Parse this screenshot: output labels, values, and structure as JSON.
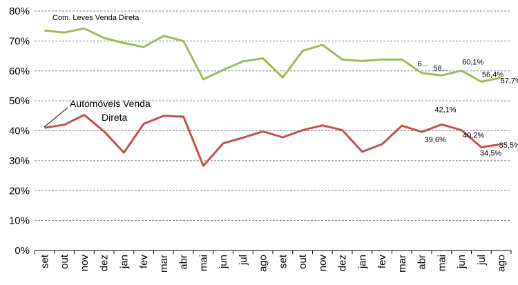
{
  "chart_data": {
    "type": "line",
    "categories": [
      "set",
      "out",
      "nov",
      "dez",
      "jan",
      "fev",
      "mar",
      "abr",
      "mai",
      "jun",
      "jul",
      "ago",
      "set",
      "out",
      "nov",
      "dez",
      "jan",
      "fev",
      "mar",
      "abr",
      "mai",
      "jun",
      "jul",
      "ago"
    ],
    "ylim": [
      0,
      80
    ],
    "yticks": [
      0,
      10,
      20,
      30,
      40,
      50,
      60,
      70,
      80
    ],
    "ytick_labels": [
      "0%",
      "10%",
      "20%",
      "30%",
      "40%",
      "50%",
      "60%",
      "70%",
      "80%"
    ],
    "grid": true,
    "series": [
      {
        "name": "Com. Leves Venda Direta",
        "color": "#9bbb59",
        "values": [
          73.5,
          72.8,
          74.2,
          71.0,
          69.3,
          68.0,
          71.7,
          70.0,
          57.2,
          60.3,
          63.2,
          64.2,
          57.8,
          66.7,
          68.7,
          63.8,
          63.3,
          63.8,
          63.8,
          59.3,
          58.5,
          60.1,
          56.4,
          57.7
        ],
        "data_labels": [
          {
            "index": 19,
            "text": "6..."
          },
          {
            "index": 20,
            "text": "58..."
          },
          {
            "index": 21,
            "text": "60,1%"
          },
          {
            "index": 22,
            "text": "56,4%"
          },
          {
            "index": 23,
            "text": "57,7%"
          }
        ]
      },
      {
        "name": "Automóveis Venda Direta",
        "name_lines": [
          "Automóveis Venda",
          "Direta"
        ],
        "color": "#c0504d",
        "values": [
          41.0,
          42.0,
          45.3,
          39.8,
          32.7,
          42.3,
          45.0,
          44.7,
          28.3,
          35.8,
          37.7,
          39.8,
          37.8,
          40.2,
          41.8,
          40.2,
          33.0,
          35.5,
          41.7,
          39.6,
          42.1,
          40.2,
          34.5,
          35.5
        ],
        "data_labels": [
          {
            "index": 19,
            "text": "39,6%"
          },
          {
            "index": 20,
            "text": "42,1%"
          },
          {
            "index": 21,
            "text": "40,2%"
          },
          {
            "index": 22,
            "text": "34,5%"
          },
          {
            "index": 23,
            "text": "35,5%"
          }
        ]
      }
    ]
  }
}
